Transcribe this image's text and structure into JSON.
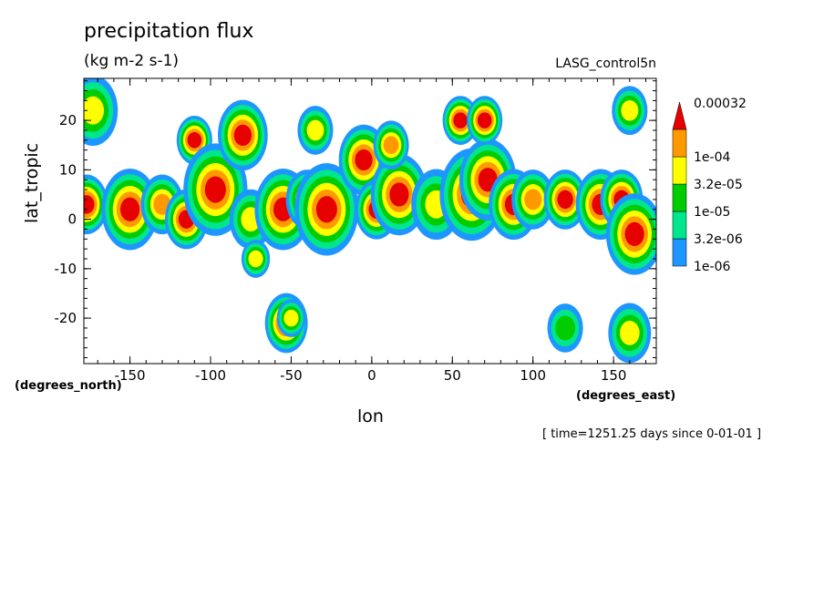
{
  "chart_data": {
    "type": "heatmap",
    "title": "precipitation flux",
    "subtitle": "(kg m-2 s-1)",
    "dataset_label": "LASG_control5n",
    "xlabel": "lon",
    "ylabel": "lat_tropic",
    "x_unit_label": "(degrees_east)",
    "y_unit_label": "(degrees_north)",
    "footnote": "[ time=1251.25 days since 0-01-01 ]",
    "xlim": [
      -178.6,
      176.5
    ],
    "ylim": [
      -29.2,
      28.5
    ],
    "x_ticks": [
      -150,
      -100,
      -50,
      0,
      50,
      100,
      150
    ],
    "x_tick_labels": [
      "-150",
      "-100",
      "-50",
      "0",
      "50",
      "100",
      "150"
    ],
    "y_ticks": [
      -20,
      -10,
      0,
      10,
      20
    ],
    "y_tick_labels": [
      "-20",
      "-10",
      "0",
      "10",
      "20"
    ],
    "grid": false,
    "legend": {
      "position": "right",
      "levels": [
        "1e-06",
        "3.2e-06",
        "1e-05",
        "3.2e-05",
        "1e-04",
        "0.00032"
      ],
      "colors": [
        "#1e96ff",
        "#00e68c",
        "#00cc00",
        "#ffff00",
        "#ff9900",
        "#e60000"
      ]
    },
    "features": [
      {
        "lon": -177,
        "lat": 3,
        "r": 5,
        "level": 6
      },
      {
        "lon": -173,
        "lat": 22,
        "r": 6,
        "level": 4
      },
      {
        "lon": -150,
        "lat": 2,
        "r": 7,
        "level": 6
      },
      {
        "lon": -130,
        "lat": 3,
        "r": 5,
        "level": 5
      },
      {
        "lon": -115,
        "lat": 0,
        "r": 5,
        "level": 6
      },
      {
        "lon": -110,
        "lat": 16,
        "r": 4,
        "level": 6
      },
      {
        "lon": -97,
        "lat": 6,
        "r": 8,
        "level": 6
      },
      {
        "lon": -80,
        "lat": 17,
        "r": 6,
        "level": 6
      },
      {
        "lon": -75,
        "lat": 0,
        "r": 5,
        "level": 4
      },
      {
        "lon": -72,
        "lat": -8,
        "r": 3,
        "level": 4
      },
      {
        "lon": -55,
        "lat": 2,
        "r": 7,
        "level": 6
      },
      {
        "lon": -53,
        "lat": -21,
        "r": 5,
        "level": 6
      },
      {
        "lon": -40,
        "lat": 4,
        "r": 5,
        "level": 5
      },
      {
        "lon": -28,
        "lat": 2,
        "r": 8,
        "level": 6
      },
      {
        "lon": -35,
        "lat": 18,
        "r": 4,
        "level": 4
      },
      {
        "lon": -5,
        "lat": 12,
        "r": 6,
        "level": 6
      },
      {
        "lon": 3,
        "lat": 2,
        "r": 5,
        "level": 6
      },
      {
        "lon": 17,
        "lat": 5,
        "r": 7,
        "level": 6
      },
      {
        "lon": 12,
        "lat": 15,
        "r": 4,
        "level": 5
      },
      {
        "lon": 40,
        "lat": 3,
        "r": 6,
        "level": 4
      },
      {
        "lon": 55,
        "lat": 20,
        "r": 4,
        "level": 6
      },
      {
        "lon": 62,
        "lat": 5,
        "r": 8,
        "level": 6
      },
      {
        "lon": 72,
        "lat": 8,
        "r": 7,
        "level": 6
      },
      {
        "lon": 70,
        "lat": 20,
        "r": 4,
        "level": 6
      },
      {
        "lon": 88,
        "lat": 3,
        "r": 6,
        "level": 6
      },
      {
        "lon": 100,
        "lat": 4,
        "r": 5,
        "level": 5
      },
      {
        "lon": 120,
        "lat": 4,
        "r": 5,
        "level": 6
      },
      {
        "lon": 142,
        "lat": 3,
        "r": 6,
        "level": 6
      },
      {
        "lon": 155,
        "lat": 4,
        "r": 5,
        "level": 6
      },
      {
        "lon": 163,
        "lat": -3,
        "r": 7,
        "level": 6
      },
      {
        "lon": 160,
        "lat": 22,
        "r": 4,
        "level": 4
      },
      {
        "lon": -50,
        "lat": -20,
        "r": 3,
        "level": 4
      },
      {
        "lon": 120,
        "lat": -22,
        "r": 4,
        "level": 3
      },
      {
        "lon": 160,
        "lat": -23,
        "r": 5,
        "level": 4
      }
    ]
  }
}
